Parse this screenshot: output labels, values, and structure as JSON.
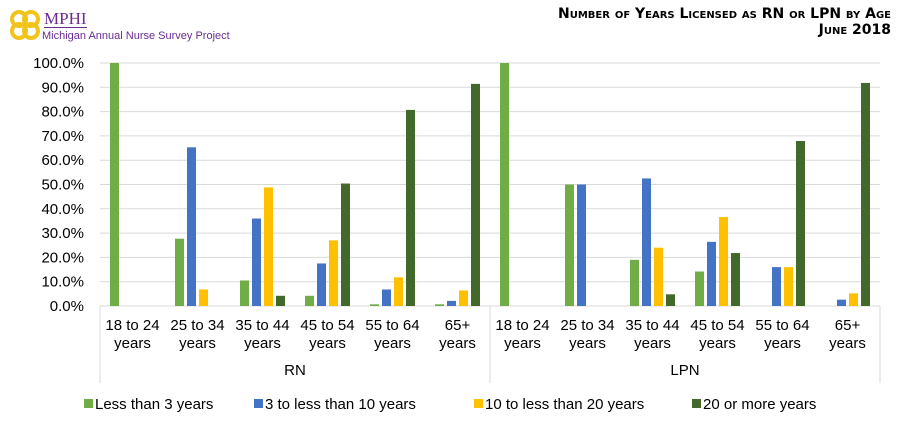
{
  "logo": {
    "name": "MPHI",
    "subtitle": "Michigan Annual Nurse Survey Project",
    "color": "#6a2c91",
    "accent": "#f2c31b"
  },
  "chart_data": {
    "type": "bar",
    "title": "Number of Years Licensed as RN or LPN by Age",
    "subtitle": "June 2018",
    "groups": [
      "RN",
      "LPN"
    ],
    "categories": [
      "18 to 24 years",
      "25 to 34 years",
      "35 to 44 years",
      "45 to 54 years",
      "55 to 64 years",
      "65+ years"
    ],
    "ylim": [
      0,
      100
    ],
    "yticks": [
      "0.0%",
      "10.0%",
      "20.0%",
      "30.0%",
      "40.0%",
      "50.0%",
      "60.0%",
      "70.0%",
      "80.0%",
      "90.0%",
      "100.0%"
    ],
    "grid": true,
    "legend_position": "bottom",
    "series": [
      {
        "name": "Less than 3 years",
        "color": "#70ad47",
        "values": {
          "RN": [
            100,
            27.7,
            10.5,
            4.2,
            0.7,
            0.7
          ],
          "LPN": [
            100,
            50,
            19.0,
            14.2,
            0,
            0
          ]
        }
      },
      {
        "name": "3 to less than 10 years",
        "color": "#4472c4",
        "values": {
          "RN": [
            0,
            65.3,
            36.0,
            17.5,
            6.8,
            2.1
          ],
          "LPN": [
            0,
            50,
            52.5,
            26.4,
            16.0,
            2.6
          ]
        }
      },
      {
        "name": "10 to less than 20 years",
        "color": "#ffc000",
        "values": {
          "RN": [
            0,
            6.8,
            48.8,
            27.0,
            11.8,
            6.4
          ],
          "LPN": [
            0,
            0,
            24.0,
            36.6,
            16.0,
            5.2
          ]
        }
      },
      {
        "name": "20 or more years",
        "color": "#43682b",
        "values": {
          "RN": [
            0,
            0,
            4.2,
            50.4,
            80.7,
            91.4
          ],
          "LPN": [
            0,
            0,
            4.8,
            21.8,
            67.9,
            91.8
          ]
        }
      }
    ]
  }
}
